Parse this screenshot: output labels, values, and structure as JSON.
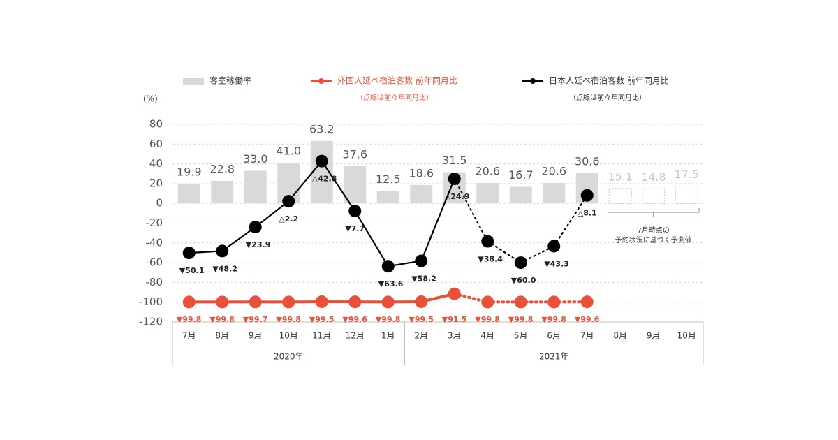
{
  "chart_data": {
    "type": "bar_line",
    "y_unit": "(%)",
    "categories": [
      "7月",
      "8月",
      "9月",
      "10月",
      "11月",
      "12月",
      "1月",
      "2月",
      "3月",
      "4月",
      "5月",
      "6月",
      "7月",
      "8月",
      "9月",
      "10月"
    ],
    "groups": [
      {
        "label": "2020年",
        "from": 0,
        "to": 6
      },
      {
        "label": "2021年",
        "from": 7,
        "to": 15
      }
    ],
    "bars": {
      "name": "客室稼働率",
      "color": "#d9d9d9",
      "values": [
        19.9,
        22.8,
        33.0,
        41.0,
        63.2,
        37.6,
        12.5,
        18.6,
        31.5,
        20.6,
        16.7,
        20.6,
        30.6,
        15.1,
        14.8,
        17.5
      ],
      "value_labels": [
        "19.9",
        "22.8",
        "33.0",
        "41.0",
        "63.2",
        "37.6",
        "12.5",
        "18.6",
        "31.5",
        "20.6",
        "16.7",
        "20.6",
        "30.6",
        "15.1",
        "14.8",
        "17.5"
      ],
      "forecast_from": 13
    },
    "series": [
      {
        "name": "外国人延べ宿泊客数 前年同月比",
        "note": "（点線は前々年同月比）",
        "color": "#e8503a",
        "values": [
          -99.8,
          -99.8,
          -99.7,
          -99.8,
          -99.5,
          -99.6,
          -99.8,
          -99.5,
          -91.5,
          -99.8,
          -99.8,
          -99.8,
          -99.6,
          null,
          null,
          null
        ],
        "value_labels": [
          "▼99.8",
          "▼99.8",
          "▼99.7",
          "▼99.8",
          "▼99.5",
          "▼99.6",
          "▼99.8",
          "▼99.5",
          "▼91.5",
          "▼99.8",
          "▼99.8",
          "▼99.8",
          "▼99.6",
          null,
          null,
          null
        ]
      },
      {
        "name": "日本人延べ宿泊客数 前年同月比",
        "note": "（点線は前々年同月比）",
        "color": "#000000",
        "values": [
          -50.1,
          -48.2,
          -23.9,
          2.2,
          42.8,
          -7.7,
          -63.6,
          -58.2,
          24.9,
          -38.4,
          -60.0,
          -43.3,
          8.1,
          null,
          null,
          null
        ],
        "value_labels": [
          "▼50.1",
          "▼48.2",
          "▼23.9",
          "△2.2",
          "△42.8",
          "▼7.7",
          "▼63.6",
          "▼58.2",
          "△24.9",
          "▼38.4",
          "▼60.0",
          "▼43.3",
          "△8.1",
          null,
          null,
          null
        ]
      }
    ],
    "dotted_from": 8,
    "forecast_annotation": [
      "7月時点の",
      "予約状況に基づく予測値"
    ],
    "ylim": [
      -120,
      80
    ],
    "yticks": [
      -120,
      -100,
      -80,
      -60,
      -40,
      -20,
      0,
      20,
      40,
      60,
      80
    ],
    "grid": true
  }
}
